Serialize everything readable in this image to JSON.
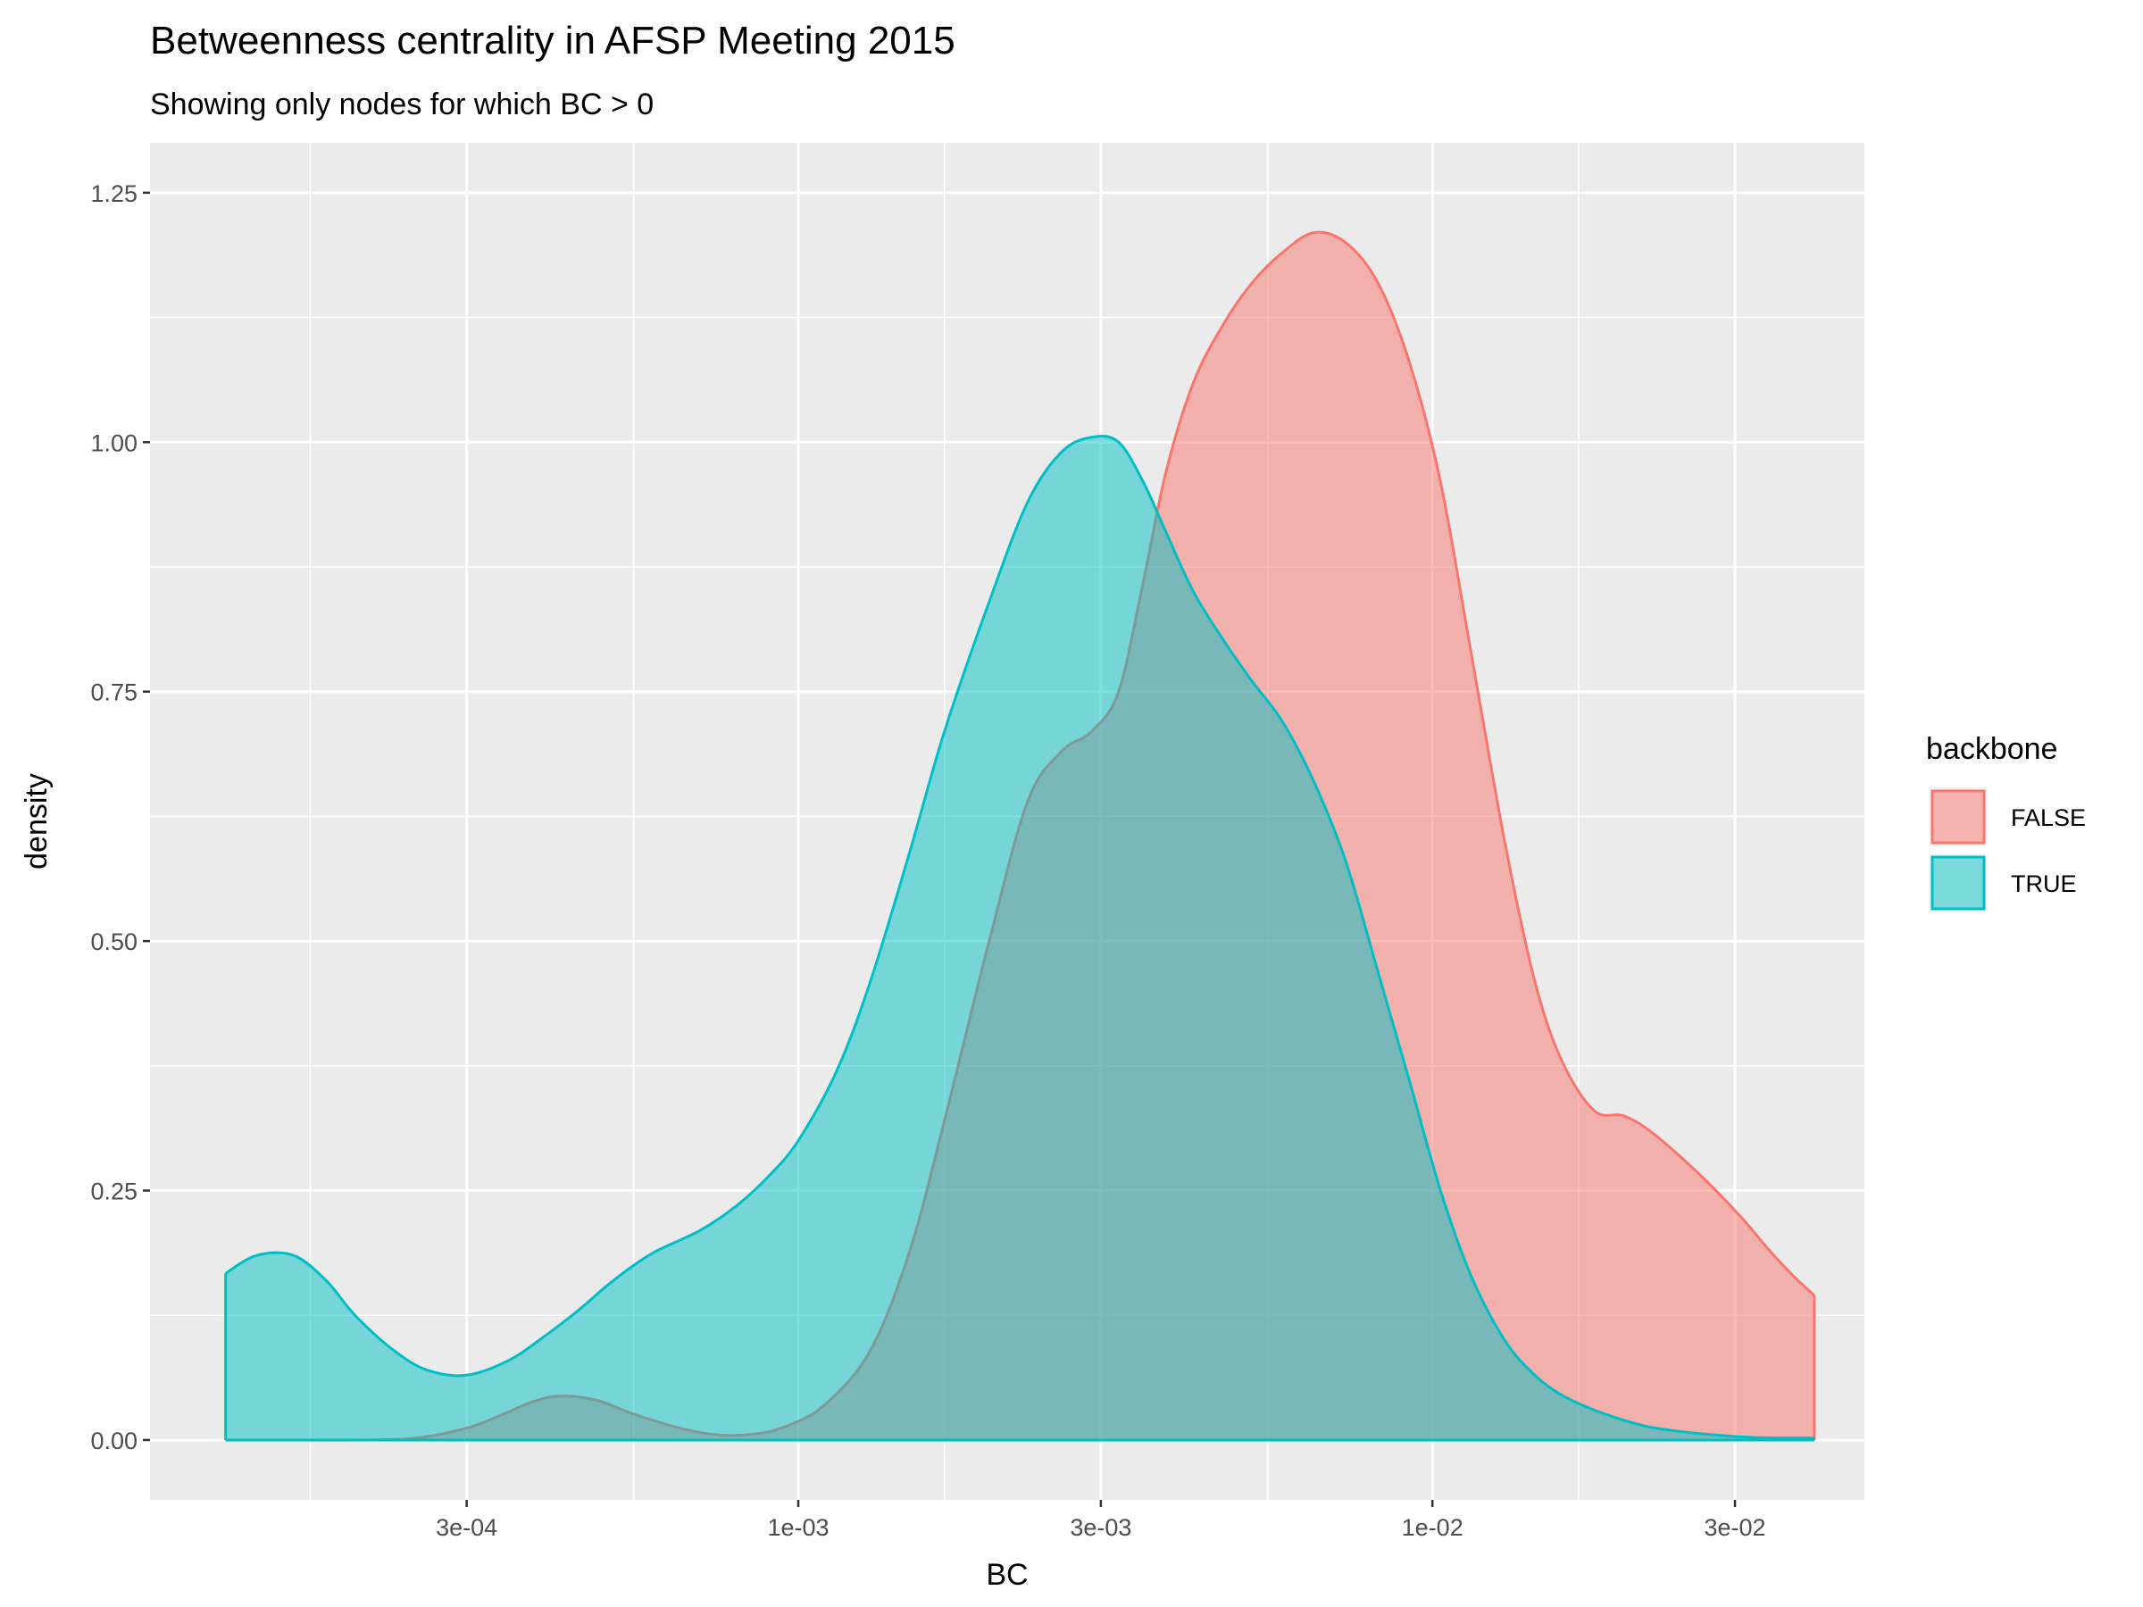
{
  "chart_data": {
    "type": "area",
    "title": "Betweenness centrality in AFSP Meeting 2015",
    "subtitle": "Showing only nodes for which BC > 0",
    "xlabel": "BC",
    "ylabel": "density",
    "x_scale": "log10",
    "xlim": [
      9.5e-05,
      0.048
    ],
    "ylim": [
      -0.06,
      1.3
    ],
    "x_ticks": [
      {
        "value": 0.0003,
        "label": "3e-04"
      },
      {
        "value": 0.001,
        "label": "1e-03"
      },
      {
        "value": 0.003,
        "label": "3e-03"
      },
      {
        "value": 0.01,
        "label": "1e-02"
      },
      {
        "value": 0.03,
        "label": "3e-02"
      }
    ],
    "x_minor_gridlines": [
      0.00017,
      0.00055,
      0.0017,
      0.0055,
      0.017
    ],
    "y_ticks": [
      {
        "value": 0.0,
        "label": "0.00"
      },
      {
        "value": 0.25,
        "label": "0.25"
      },
      {
        "value": 0.5,
        "label": "0.50"
      },
      {
        "value": 0.75,
        "label": "0.75"
      },
      {
        "value": 1.0,
        "label": "1.00"
      },
      {
        "value": 1.25,
        "label": "1.25"
      }
    ],
    "grid": true,
    "legend": {
      "title": "backbone",
      "position": "right"
    },
    "series": [
      {
        "name": "FALSE",
        "color": "#F8766D",
        "x": [
          0.000125,
          0.00015,
          0.0002,
          0.00025,
          0.0003,
          0.00034,
          0.00038,
          0.00042,
          0.00048,
          0.00055,
          0.00065,
          0.00075,
          0.00085,
          0.00095,
          0.0011,
          0.0013,
          0.0015,
          0.0017,
          0.002,
          0.0023,
          0.0026,
          0.0029,
          0.0032,
          0.0035,
          0.0038,
          0.0042,
          0.0047,
          0.0052,
          0.0058,
          0.0065,
          0.0073,
          0.0082,
          0.0092,
          0.0103,
          0.0115,
          0.013,
          0.0145,
          0.016,
          0.018,
          0.02,
          0.022,
          0.025,
          0.028,
          0.031,
          0.034,
          0.037,
          0.04
        ],
        "values": [
          0.0,
          0.0,
          0.0,
          0.002,
          0.012,
          0.025,
          0.038,
          0.044,
          0.04,
          0.026,
          0.012,
          0.005,
          0.006,
          0.013,
          0.035,
          0.09,
          0.19,
          0.32,
          0.5,
          0.64,
          0.69,
          0.71,
          0.75,
          0.86,
          0.97,
          1.06,
          1.12,
          1.16,
          1.19,
          1.21,
          1.2,
          1.16,
          1.08,
          0.96,
          0.79,
          0.6,
          0.46,
          0.38,
          0.33,
          0.325,
          0.31,
          0.28,
          0.25,
          0.22,
          0.19,
          0.165,
          0.145
        ]
      },
      {
        "name": "TRUE",
        "color": "#00BFC4",
        "x": [
          0.000125,
          0.00014,
          0.00016,
          0.00018,
          0.0002,
          0.00023,
          0.00026,
          0.0003,
          0.00035,
          0.0004,
          0.00045,
          0.0005,
          0.00055,
          0.0006,
          0.0007,
          0.0008,
          0.0009,
          0.001,
          0.00115,
          0.0013,
          0.0015,
          0.0017,
          0.002,
          0.0023,
          0.0026,
          0.0029,
          0.0032,
          0.0035,
          0.0038,
          0.0042,
          0.0047,
          0.0052,
          0.0058,
          0.0065,
          0.0073,
          0.0082,
          0.0092,
          0.0103,
          0.0115,
          0.013,
          0.0145,
          0.016,
          0.018,
          0.02,
          0.022,
          0.025,
          0.028,
          0.031,
          0.035,
          0.04
        ],
        "values": [
          0.167,
          0.185,
          0.185,
          0.16,
          0.125,
          0.09,
          0.07,
          0.065,
          0.08,
          0.105,
          0.13,
          0.155,
          0.175,
          0.19,
          0.21,
          0.235,
          0.265,
          0.3,
          0.37,
          0.46,
          0.59,
          0.71,
          0.84,
          0.94,
          0.99,
          1.005,
          1.0,
          0.96,
          0.91,
          0.85,
          0.8,
          0.76,
          0.72,
          0.66,
          0.58,
          0.47,
          0.36,
          0.25,
          0.165,
          0.1,
          0.065,
          0.045,
          0.03,
          0.02,
          0.013,
          0.008,
          0.005,
          0.003,
          0.002,
          0.002
        ]
      }
    ]
  }
}
